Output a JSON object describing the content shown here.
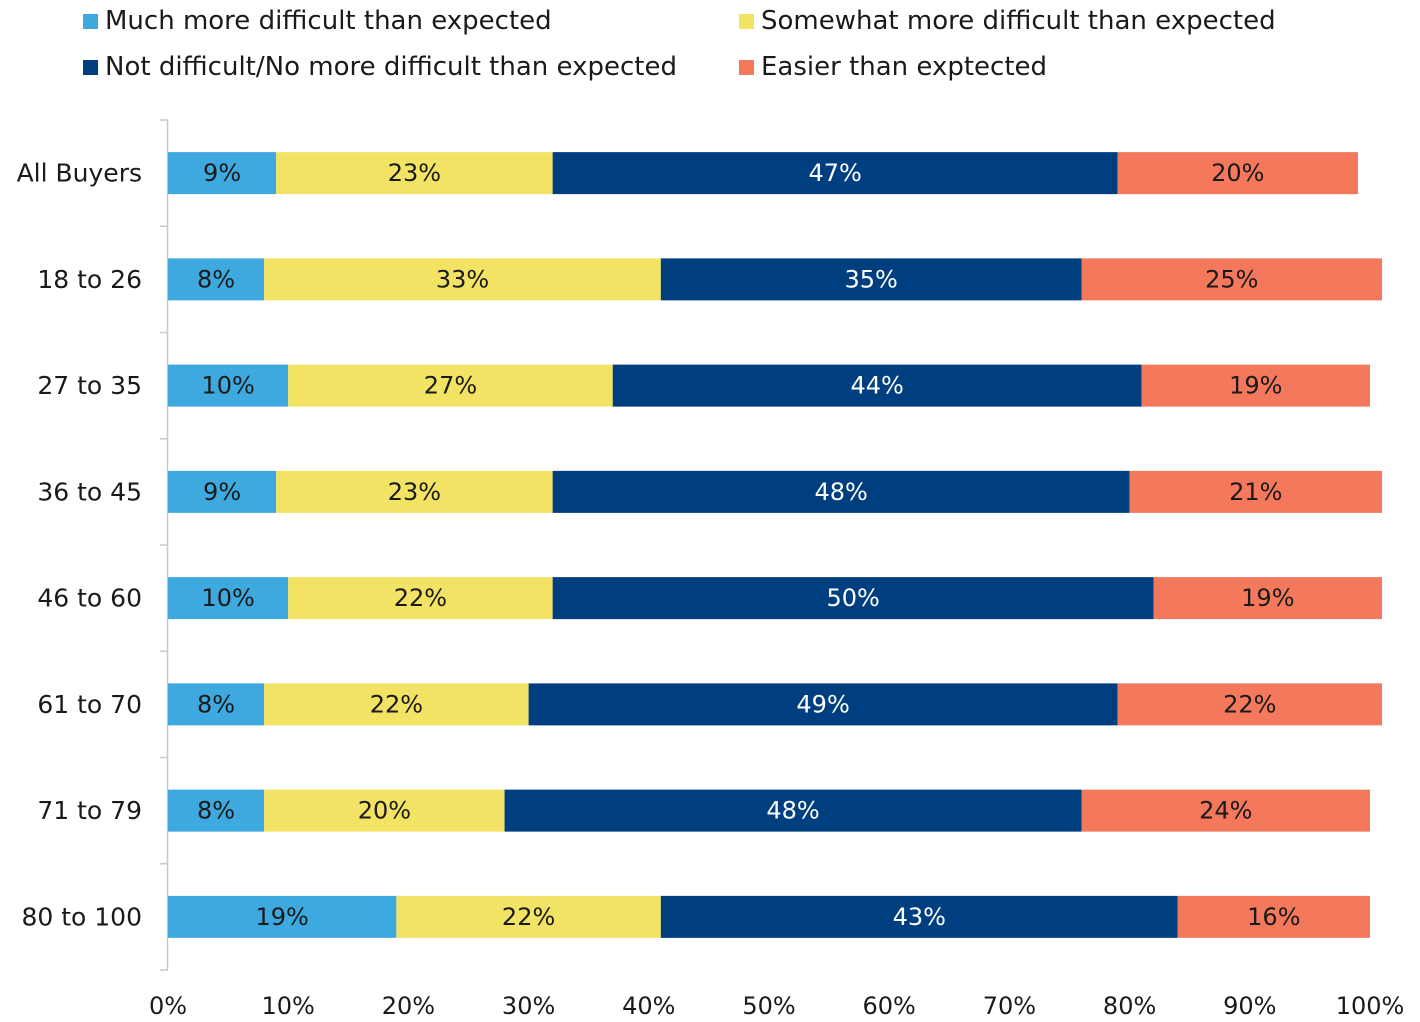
{
  "chart_data": {
    "type": "bar",
    "orientation": "horizontal",
    "stacked": true,
    "categories": [
      "All Buyers",
      "18 to 26",
      "27 to 35",
      "36 to 45",
      "46 to 60",
      "61 to 70",
      "71 to 79",
      "80 to 100"
    ],
    "series": [
      {
        "name": "Much more difficult than expected",
        "color": "#3ea9df",
        "label_color": "#1a1a1a",
        "values": [
          9,
          8,
          10,
          9,
          10,
          8,
          8,
          19
        ]
      },
      {
        "name": "Somewhat more difficult than expected",
        "color": "#f3e364",
        "label_color": "#1a1a1a",
        "values": [
          23,
          33,
          27,
          23,
          22,
          22,
          20,
          22
        ]
      },
      {
        "name": "Not difficult/No more difficult than expected",
        "color": "#003f7f",
        "label_color": "#ffffff",
        "values": [
          47,
          35,
          44,
          48,
          50,
          49,
          48,
          43
        ]
      },
      {
        "name": "Easier than exptected",
        "color": "#f3785c",
        "label_color": "#1a1a1a",
        "values": [
          20,
          25,
          19,
          21,
          19,
          22,
          24,
          16
        ]
      }
    ],
    "xlim": [
      0,
      100
    ],
    "x_ticks": [
      "0%",
      "10%",
      "20%",
      "30%",
      "40%",
      "50%",
      "60%",
      "70%",
      "80%",
      "90%",
      "100%"
    ],
    "value_suffix": "%",
    "legend_position": "top",
    "grid": false,
    "title": "",
    "xlabel": "",
    "ylabel": ""
  }
}
